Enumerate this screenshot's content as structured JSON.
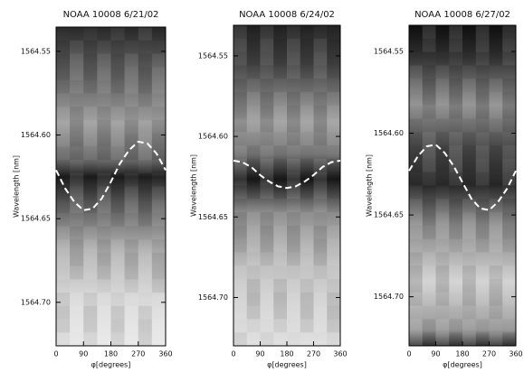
{
  "chart_data": [
    {
      "type": "line",
      "title": "NOAA 10008 6/21/02",
      "xlabel": "φ[degrees]",
      "ylabel": "Wavelength [nm]",
      "x": [
        0,
        30,
        60,
        90,
        120,
        150,
        180,
        210,
        240,
        270,
        300,
        330,
        360
      ],
      "series": [
        {
          "color": "#ffffff",
          "values": [
            1564.621,
            1564.632,
            1564.64,
            1564.645,
            1564.644,
            1564.638,
            1564.628,
            1564.617,
            1564.609,
            1564.604,
            1564.605,
            1564.611,
            1564.621
          ]
        }
      ],
      "xlim": [
        0,
        360
      ],
      "xticks": [
        0,
        90,
        180,
        270,
        360
      ],
      "ylim": [
        1564.726,
        1564.5355
      ],
      "yticks": [
        1564.55,
        {
          "value": 1564.6,
          "label": "1564.60"
        },
        1564.65,
        {
          "value": 1564.7,
          "label": "1564.70"
        }
      ]
    },
    {
      "type": "line",
      "title": "NOAA 10008 6/24/02",
      "xlabel": "φ[degrees]",
      "ylabel": "Wavelength [nm]",
      "x": [
        0,
        30,
        60,
        90,
        120,
        150,
        180,
        210,
        240,
        270,
        300,
        330,
        360
      ],
      "series": [
        {
          "color": "#ffffff",
          "values": [
            1564.615,
            1564.616,
            1564.619,
            1564.624,
            1564.628,
            1564.631,
            1564.632,
            1564.631,
            1564.628,
            1564.624,
            1564.619,
            1564.616,
            1564.615
          ]
        }
      ],
      "xlim": [
        0,
        360
      ],
      "xticks": [
        0,
        90,
        180,
        270,
        360
      ],
      "ylim": [
        1564.73,
        1564.531
      ],
      "yticks": [
        1564.55,
        {
          "value": 1564.6,
          "label": "1564.60"
        },
        1564.65,
        {
          "value": 1564.7,
          "label": "1564.70"
        }
      ]
    },
    {
      "type": "line",
      "title": "NOAA 10008 6/27/02",
      "xlabel": "φ[degrees]",
      "ylabel": "Wavelength [nm]",
      "x": [
        0,
        30,
        60,
        90,
        120,
        150,
        180,
        210,
        240,
        270,
        300,
        330,
        360
      ],
      "series": [
        {
          "color": "#ffffff",
          "values": [
            1564.623,
            1564.614,
            1564.608,
            1564.607,
            1564.612,
            1564.62,
            1564.63,
            1564.64,
            1564.646,
            1564.647,
            1564.642,
            1564.634,
            1564.623
          ]
        }
      ],
      "xlim": [
        0,
        360
      ],
      "xticks": [
        0,
        90,
        180,
        270,
        360
      ],
      "ylim": [
        1564.73,
        1564.534
      ],
      "yticks": [
        1564.55,
        {
          "value": 1564.6,
          "label": "1564.60"
        },
        1564.65,
        {
          "value": 1564.7,
          "label": "1564.70"
        }
      ]
    }
  ]
}
